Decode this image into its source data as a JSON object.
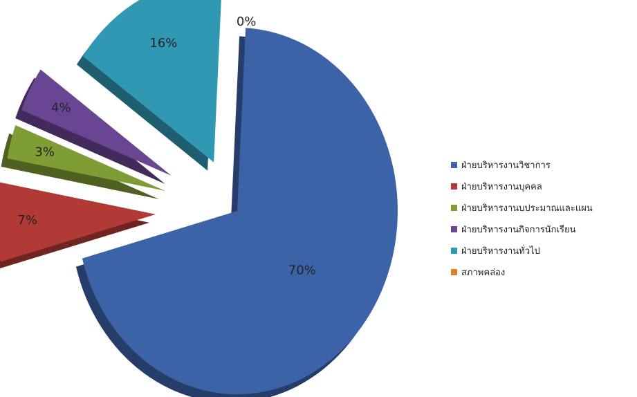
{
  "chart_data": {
    "type": "pie",
    "title": "",
    "series": [
      {
        "values": [
          70,
          7,
          3,
          4,
          16,
          0
        ],
        "labels": [
          "70%",
          "7%",
          "3%",
          "4%",
          "16%",
          "0%"
        ]
      }
    ],
    "categories": [
      "ฝ่ายบริหารงานวิชาการ",
      "ฝ่ายบริหารงานบุคคล",
      "ฝ่ายบริหารงานบประมาณและแผน",
      "ฝ่ายบริหารงานกิจการนักเรียน",
      "ฝ่ายบริหารงานทั่วไป",
      "สภาพคล่อง"
    ],
    "colors": [
      "#3c62a8",
      "#b23a36",
      "#7f9d35",
      "#6a4592",
      "#3198b3",
      "#e07f27"
    ],
    "exploded": true,
    "style": "3d",
    "legend_position": "right"
  }
}
